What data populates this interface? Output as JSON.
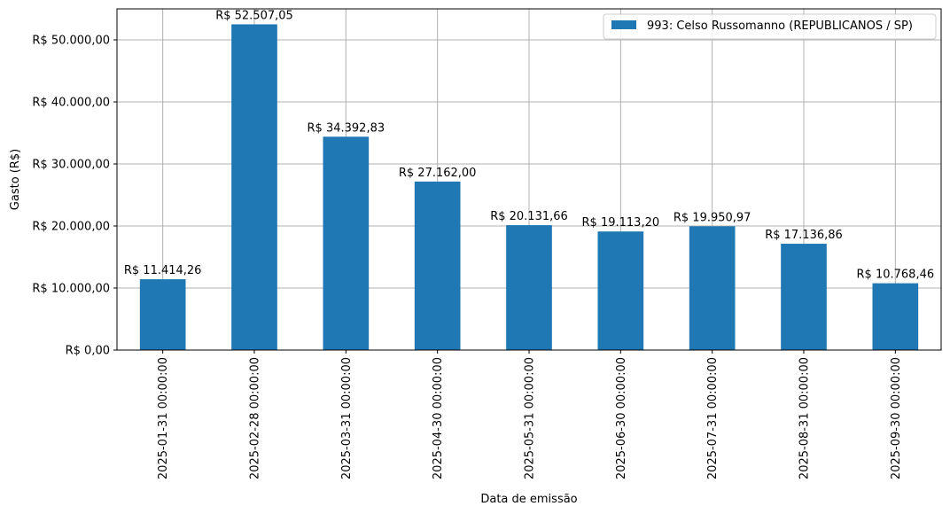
{
  "chart_data": {
    "type": "bar",
    "title": "",
    "xlabel": "Data de emissão",
    "ylabel": "Gasto (R$)",
    "ylim": [
      0,
      55000
    ],
    "yticks": [
      0,
      10000,
      20000,
      30000,
      40000,
      50000
    ],
    "ytick_labels": [
      "R$ 0,00",
      "R$ 10.000,00",
      "R$ 20.000,00",
      "R$ 30.000,00",
      "R$ 40.000,00",
      "R$ 50.000,00"
    ],
    "grid": true,
    "legend_position": "top-right",
    "categories": [
      "2025-01-31 00:00:00",
      "2025-02-28 00:00:00",
      "2025-03-31 00:00:00",
      "2025-04-30 00:00:00",
      "2025-05-31 00:00:00",
      "2025-06-30 00:00:00",
      "2025-07-31 00:00:00",
      "2025-08-31 00:00:00",
      "2025-09-30 00:00:00"
    ],
    "series": [
      {
        "name": "993: Celso Russomanno (REPUBLICANOS / SP)",
        "color": "#1f77b4",
        "values": [
          11414.26,
          52507.05,
          34392.83,
          27162.0,
          20131.66,
          19113.2,
          19950.97,
          17136.86,
          10768.46
        ],
        "value_labels": [
          "R$ 11.414,26",
          "R$ 52.507,05",
          "R$ 34.392,83",
          "R$ 27.162,00",
          "R$ 20.131,66",
          "R$ 19.113,20",
          "R$ 19.950,97",
          "R$ 17.136,86",
          "R$ 10.768,46"
        ]
      }
    ]
  }
}
